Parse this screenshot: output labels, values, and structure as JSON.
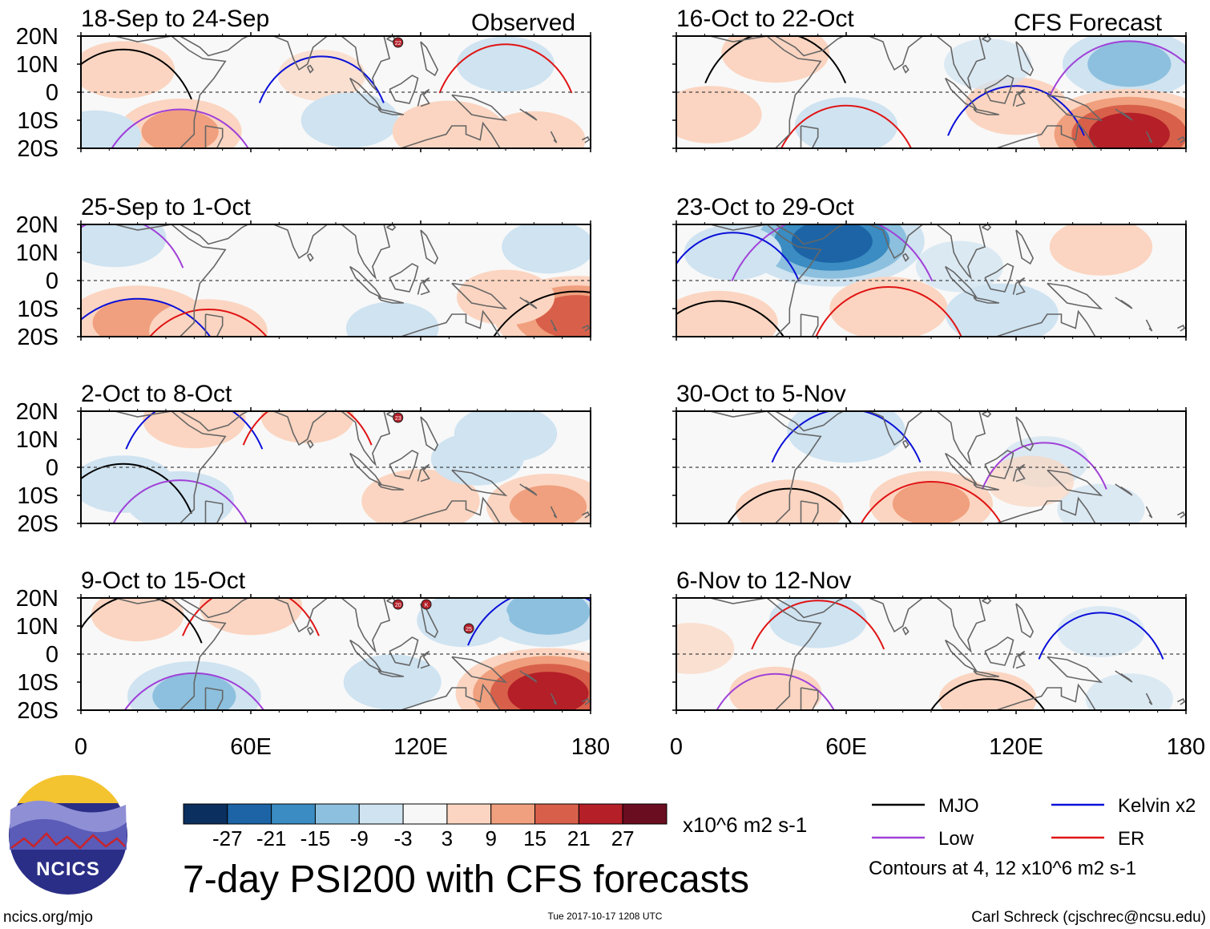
{
  "chart_data": {
    "type": "contour-map-panels",
    "title": "7-day PSI200 with CFS forecasts",
    "variable": "PSI200",
    "units": "x10^6 m2 s-1",
    "x_axis": {
      "ticks": [
        "0",
        "60E",
        "120E",
        "180"
      ],
      "range": [
        0,
        180
      ]
    },
    "y_axis": {
      "ticks": [
        "20N",
        "10N",
        "0",
        "10S",
        "20S"
      ],
      "range": [
        -20,
        20
      ]
    },
    "column_labels": {
      "left": "Observed",
      "right": "CFS Forecast"
    },
    "panels": [
      {
        "id": "p1",
        "period": "18-Sep to 24-Sep",
        "source": "Observed",
        "anomalies": [
          {
            "lon": 15,
            "lat": 8,
            "v": 6
          },
          {
            "lon": 35,
            "lat": -14,
            "v": 10
          },
          {
            "lon": 85,
            "lat": 6,
            "v": 3
          },
          {
            "lon": 150,
            "lat": 10,
            "v": -5
          },
          {
            "lon": 95,
            "lat": -10,
            "v": -5
          },
          {
            "lon": 130,
            "lat": -14,
            "v": 8
          },
          {
            "lon": 160,
            "lat": -17,
            "v": 6
          },
          {
            "lon": 5,
            "lat": -16,
            "v": -4
          }
        ],
        "storms": [
          "22"
        ]
      },
      {
        "id": "p2",
        "period": "25-Sep to 1-Oct",
        "source": "Observed",
        "anomalies": [
          {
            "lon": 12,
            "lat": 15,
            "v": -6
          },
          {
            "lon": 20,
            "lat": -15,
            "v": 14
          },
          {
            "lon": 45,
            "lat": -18,
            "v": 9
          },
          {
            "lon": 175,
            "lat": -13,
            "v": 18
          },
          {
            "lon": 165,
            "lat": 12,
            "v": -4
          },
          {
            "lon": 150,
            "lat": -6,
            "v": 5
          },
          {
            "lon": 110,
            "lat": -17,
            "v": -4
          }
        ],
        "storms": []
      },
      {
        "id": "p3",
        "period": "2-Oct to 8-Oct",
        "source": "Observed",
        "anomalies": [
          {
            "lon": 40,
            "lat": 17,
            "v": 6
          },
          {
            "lon": 80,
            "lat": 18,
            "v": 4
          },
          {
            "lon": 15,
            "lat": -6,
            "v": -6
          },
          {
            "lon": 35,
            "lat": -12,
            "v": -7
          },
          {
            "lon": 120,
            "lat": -12,
            "v": 9
          },
          {
            "lon": 165,
            "lat": -14,
            "v": 10
          },
          {
            "lon": 150,
            "lat": 12,
            "v": -6
          },
          {
            "lon": 140,
            "lat": 3,
            "v": -4
          }
        ],
        "storms": [
          "23"
        ]
      },
      {
        "id": "p4",
        "period": "9-Oct to 15-Oct",
        "source": "Observed",
        "anomalies": [
          {
            "lon": 60,
            "lat": 17,
            "v": 6
          },
          {
            "lon": 20,
            "lat": 14,
            "v": 4
          },
          {
            "lon": 40,
            "lat": -15,
            "v": -12
          },
          {
            "lon": 165,
            "lat": 15,
            "v": -12
          },
          {
            "lon": 165,
            "lat": -14,
            "v": 22
          },
          {
            "lon": 110,
            "lat": -10,
            "v": -5
          },
          {
            "lon": 135,
            "lat": 12,
            "v": -4
          }
        ],
        "storms": [
          "20",
          "K",
          "25"
        ]
      },
      {
        "id": "p5",
        "period": "16-Oct to 22-Oct",
        "source": "CFS Forecast",
        "anomalies": [
          {
            "lon": 35,
            "lat": 14,
            "v": 7
          },
          {
            "lon": 160,
            "lat": 10,
            "v": -12
          },
          {
            "lon": 120,
            "lat": -5,
            "v": 6
          },
          {
            "lon": 60,
            "lat": -12,
            "v": -6
          },
          {
            "lon": 160,
            "lat": -15,
            "v": 22
          },
          {
            "lon": 12,
            "lat": -8,
            "v": 6
          },
          {
            "lon": 110,
            "lat": 10,
            "v": -3
          }
        ],
        "storms": []
      },
      {
        "id": "p6",
        "period": "23-Oct to 29-Oct",
        "source": "CFS Forecast",
        "anomalies": [
          {
            "lon": 55,
            "lat": 14,
            "v": -22
          },
          {
            "lon": 20,
            "lat": 10,
            "v": -5
          },
          {
            "lon": 75,
            "lat": -10,
            "v": 9
          },
          {
            "lon": 15,
            "lat": -15,
            "v": 9
          },
          {
            "lon": 150,
            "lat": 12,
            "v": 6
          },
          {
            "lon": 115,
            "lat": -12,
            "v": -8
          },
          {
            "lon": 100,
            "lat": 5,
            "v": -3
          }
        ],
        "storms": []
      },
      {
        "id": "p7",
        "period": "30-Oct to 5-Nov",
        "source": "CFS Forecast",
        "anomalies": [
          {
            "lon": 60,
            "lat": 13,
            "v": -9
          },
          {
            "lon": 90,
            "lat": -13,
            "v": 10
          },
          {
            "lon": 40,
            "lat": -15,
            "v": 7
          },
          {
            "lon": 130,
            "lat": 2,
            "v": -3
          },
          {
            "lon": 150,
            "lat": -15,
            "v": -3
          },
          {
            "lon": 125,
            "lat": -5,
            "v": 3
          }
        ],
        "storms": []
      },
      {
        "id": "p8",
        "period": "6-Nov to 12-Nov",
        "source": "CFS Forecast",
        "anomalies": [
          {
            "lon": 50,
            "lat": 12,
            "v": -5
          },
          {
            "lon": 110,
            "lat": -16,
            "v": 5
          },
          {
            "lon": 35,
            "lat": -14,
            "v": 4
          },
          {
            "lon": 150,
            "lat": 8,
            "v": -3
          },
          {
            "lon": 160,
            "lat": -16,
            "v": -3
          },
          {
            "lon": 5,
            "lat": 2,
            "v": 3
          }
        ],
        "storms": []
      }
    ],
    "colorbar": {
      "tick_labels": [
        "-27",
        "-21",
        "-15",
        "-9",
        "-3",
        "3",
        "9",
        "15",
        "21",
        "27"
      ],
      "colors": [
        "#0b2f5e",
        "#1c64a6",
        "#3a8cc2",
        "#8cc0de",
        "#cfe3f1",
        "#f7f7f7",
        "#fbd5c1",
        "#f0a07e",
        "#d8604a",
        "#b41f28",
        "#6a0d20"
      ]
    },
    "legend": [
      {
        "label": "MJO",
        "color": "#000000"
      },
      {
        "label": "Low",
        "color": "#a040d8"
      },
      {
        "label": "Kelvin x2",
        "color": "#0a10d8"
      },
      {
        "label": "ER",
        "color": "#e01414"
      }
    ],
    "contour_note": "Contours at 4, 12 x10^6 m2 s-1"
  },
  "logo": {
    "text": "NCICS"
  },
  "footer": {
    "left": "ncics.org/mjo",
    "center": "Tue 2017-10-17 1208 UTC",
    "right": "Carl Schreck (cjschrec@ncsu.edu)"
  }
}
